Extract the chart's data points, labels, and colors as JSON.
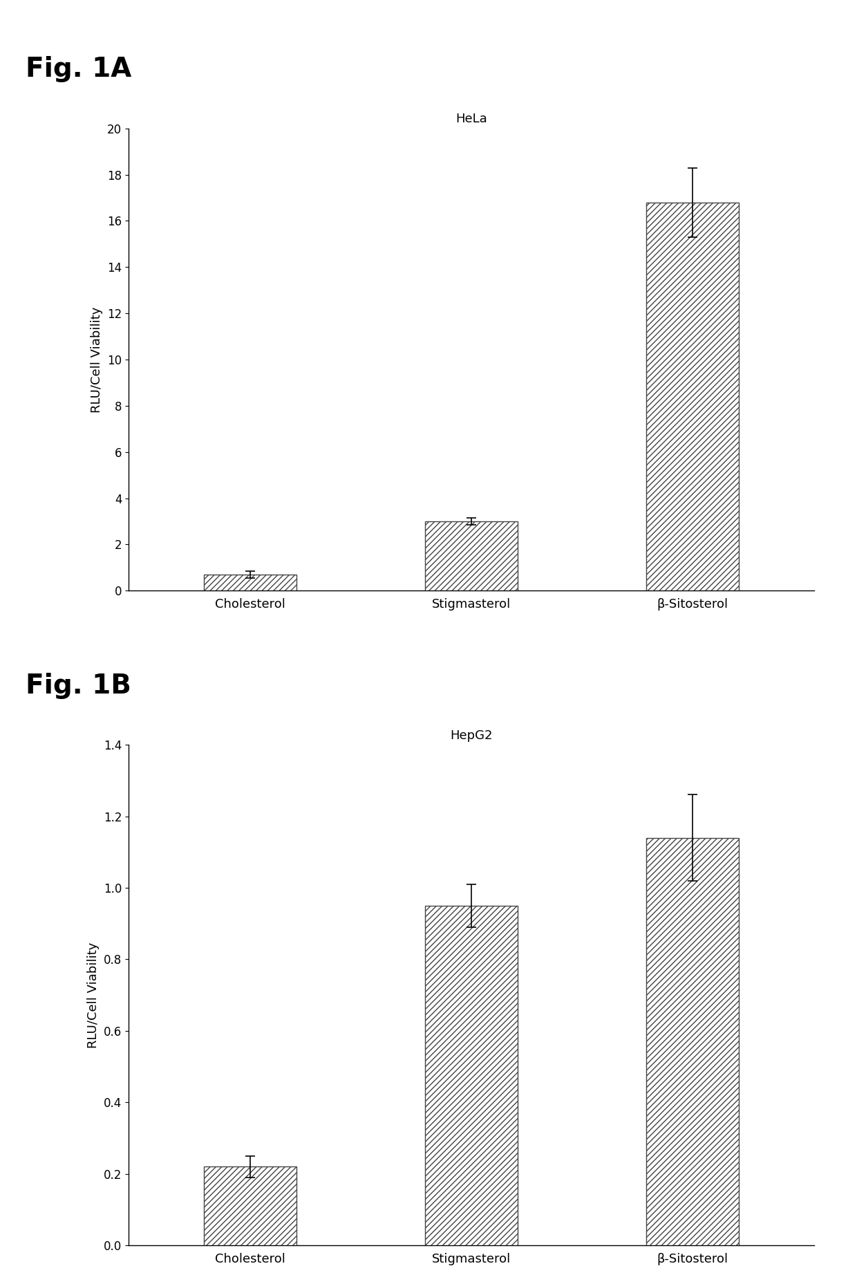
{
  "fig_a": {
    "title": "Fig. 1A",
    "subtitle": "HeLa",
    "categories": [
      "Cholesterol",
      "Stigmasterol",
      "β-Sitosterol"
    ],
    "values": [
      0.7,
      3.0,
      16.8
    ],
    "errors": [
      0.15,
      0.15,
      1.5
    ],
    "ylabel": "RLU/Cell Viability",
    "ylim": [
      0,
      20
    ],
    "yticks": [
      0,
      2,
      4,
      6,
      8,
      10,
      12,
      14,
      16,
      18,
      20
    ]
  },
  "fig_b": {
    "title": "Fig. 1B",
    "subtitle": "HepG2",
    "categories": [
      "Cholesterol",
      "Stigmasterol",
      "β-Sitosterol"
    ],
    "values": [
      0.22,
      0.95,
      1.14
    ],
    "errors": [
      0.03,
      0.06,
      0.12
    ],
    "ylabel": "RLU/Cell Viability",
    "ylim": [
      0,
      1.4
    ],
    "yticks": [
      0,
      0.2,
      0.4,
      0.6,
      0.8,
      1.0,
      1.2,
      1.4
    ]
  },
  "bar_color": "#ffffff",
  "bar_edgecolor": "#444444",
  "hatch": "////",
  "hatch_color": "#aaaaaa",
  "fig_label_fontsize": 28,
  "subtitle_fontsize": 13,
  "ylabel_fontsize": 13,
  "tick_fontsize": 12,
  "xtick_fontsize": 13,
  "background_color": "#ffffff"
}
